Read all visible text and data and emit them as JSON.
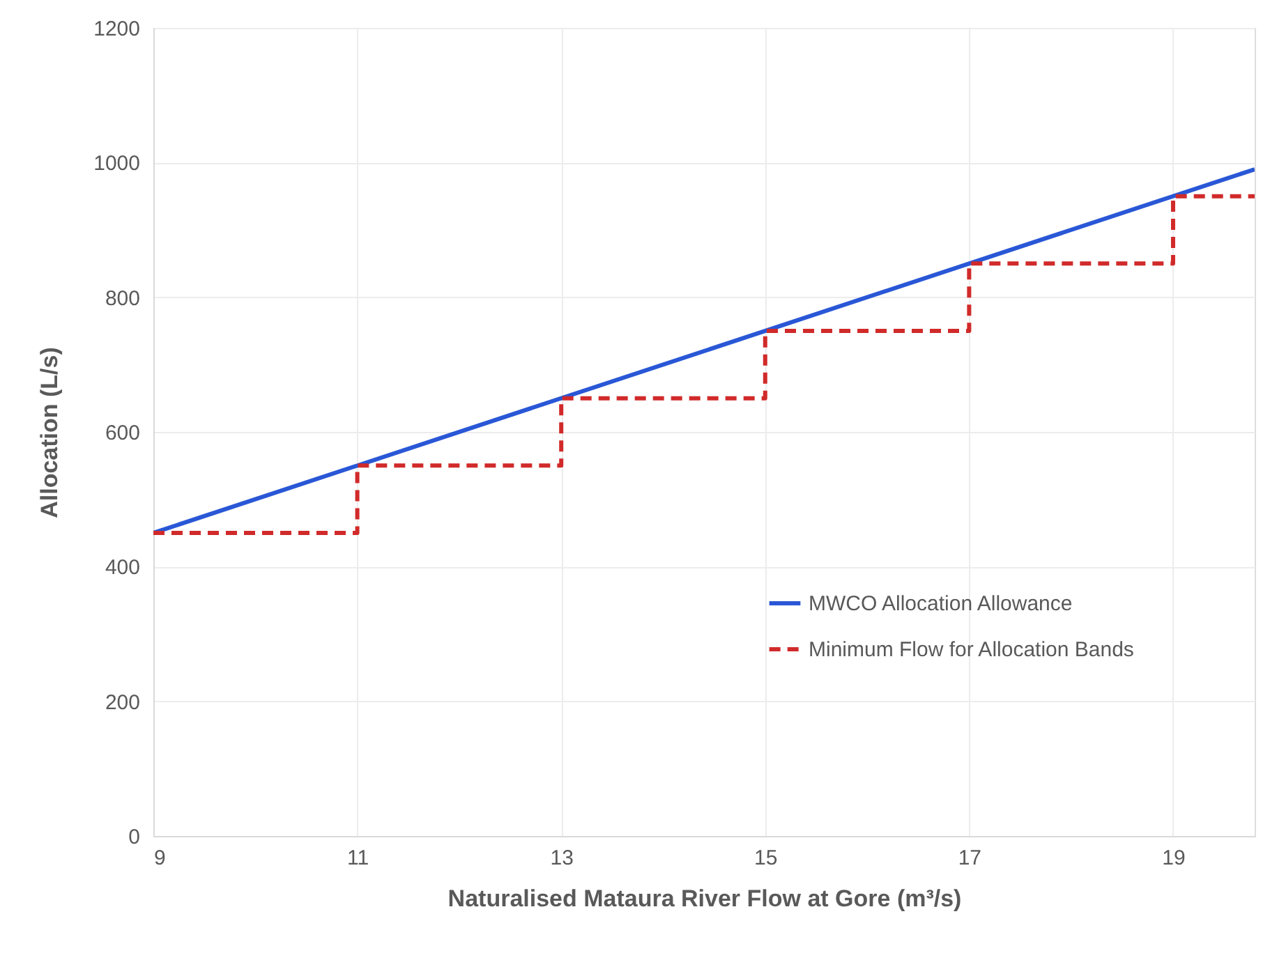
{
  "chart_data": {
    "type": "line",
    "xlabel": "Naturalised Mataura River Flow at Gore (m³/s)",
    "ylabel": "Allocation (L/s)",
    "xlim": [
      9,
      19.8
    ],
    "xticks": [
      9,
      11,
      13,
      15,
      17,
      19
    ],
    "ylim": [
      0,
      1200
    ],
    "yticks": [
      0,
      200,
      400,
      600,
      800,
      1000,
      1200
    ],
    "grid": true,
    "legend": "bottom right",
    "series": [
      {
        "name": "MWCO Allocation Allowance",
        "color": "#2957d6",
        "line_style": "solid",
        "x": [
          9,
          19.8
        ],
        "values": [
          450,
          990
        ]
      },
      {
        "name": "Minimum Flow for Allocation Bands",
        "color": "#d12a2a",
        "type": "step",
        "line_style": "dashed",
        "x": [
          9,
          11,
          13,
          15,
          17,
          19,
          19.8
        ],
        "values": [
          450,
          550,
          650,
          750,
          850,
          950,
          950
        ]
      }
    ]
  }
}
